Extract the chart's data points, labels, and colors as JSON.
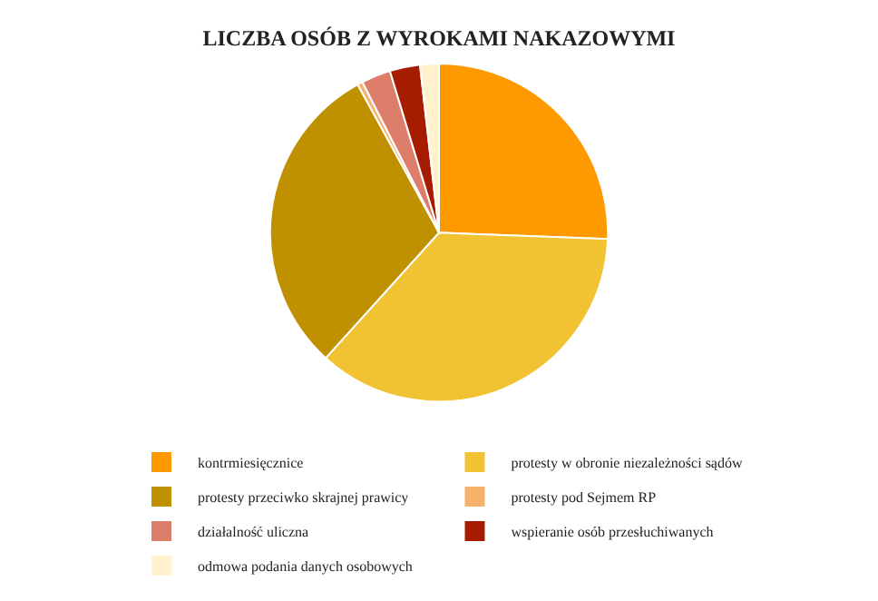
{
  "chart_data": {
    "type": "pie",
    "title": "LICZBA OSÓB Z WYROKAMI NAKAZOWYMI",
    "categories": [
      "kontrmiesięcznice",
      "protesty w obronie niezależności sądów",
      "protesty przeciwko skrajnej prawicy",
      "protesty pod Sejmem RP",
      "działalność uliczna",
      "wspieranie osób przesłuchiwanych",
      "odmowa podania danych osobowych"
    ],
    "values": [
      25.6,
      36.1,
      30.3,
      0.5,
      2.8,
      2.9,
      1.8
    ],
    "colors": [
      "#ff9900",
      "#f1c232",
      "#bf9000",
      "#f6b26b",
      "#dd7e6b",
      "#a61c00",
      "#fff2cc"
    ],
    "legend": "bottom"
  }
}
